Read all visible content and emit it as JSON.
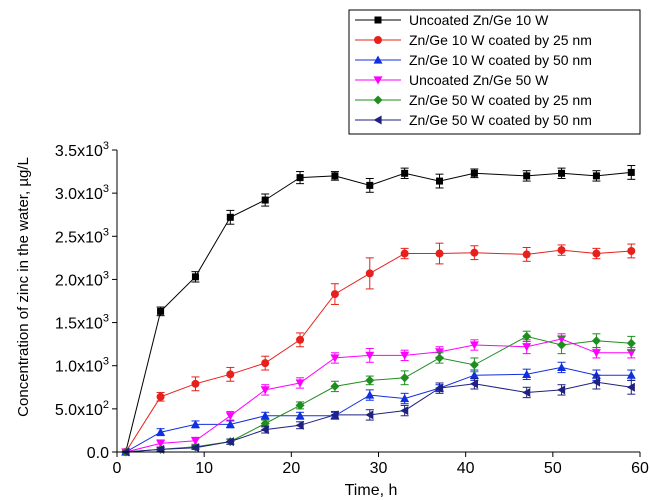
{
  "chart_data": {
    "type": "line",
    "xlabel": "Time, h",
    "ylabel": "Concentration of zinc in the water, µg/L",
    "xlim": [
      0,
      60
    ],
    "ylim": [
      0,
      3500
    ],
    "x_ticks": [
      0,
      10,
      20,
      30,
      40,
      50,
      60
    ],
    "y_ticks": [
      {
        "value": 0,
        "label": "0.0"
      },
      {
        "value": 500,
        "label": "5.0x10",
        "exp": "2"
      },
      {
        "value": 1000,
        "label": "1.0x10",
        "exp": "3"
      },
      {
        "value": 1500,
        "label": "1.5x10",
        "exp": "3"
      },
      {
        "value": 2000,
        "label": "2.0x10",
        "exp": "3"
      },
      {
        "value": 2500,
        "label": "2.5x10",
        "exp": "3"
      },
      {
        "value": 3000,
        "label": "3.0x10",
        "exp": "3"
      },
      {
        "value": 3500,
        "label": "3.5x10",
        "exp": "3"
      }
    ],
    "grid": false,
    "legend_position": "top-right",
    "series": [
      {
        "name": "Uncoated Zn/Ge 10 W",
        "color": "#000000",
        "marker": "square",
        "x": [
          1,
          5,
          9,
          13,
          17,
          21,
          25,
          29,
          33,
          37,
          41,
          47,
          51,
          55,
          59
        ],
        "y": [
          0,
          1630,
          2030,
          2720,
          2920,
          3180,
          3200,
          3090,
          3230,
          3140,
          3230,
          3200,
          3230,
          3200,
          3240
        ],
        "err": [
          0,
          50,
          60,
          80,
          70,
          70,
          50,
          80,
          60,
          80,
          50,
          60,
          60,
          60,
          80
        ]
      },
      {
        "name": "Zn/Ge 10 W coated by 25 nm",
        "color": "#e8201c",
        "marker": "circle",
        "x": [
          1,
          5,
          9,
          13,
          17,
          21,
          25,
          29,
          33,
          37,
          41,
          47,
          51,
          55,
          59
        ],
        "y": [
          0,
          640,
          790,
          900,
          1030,
          1300,
          1830,
          2070,
          2300,
          2300,
          2310,
          2290,
          2340,
          2300,
          2330
        ],
        "err": [
          0,
          50,
          80,
          80,
          80,
          80,
          120,
          180,
          60,
          120,
          80,
          80,
          60,
          60,
          80
        ]
      },
      {
        "name": "Zn/Ge 10 W coated by 50 nm",
        "color": "#1030e0",
        "marker": "triangle-up",
        "x": [
          1,
          5,
          9,
          13,
          17,
          21,
          25,
          29,
          33,
          37,
          41,
          47,
          51,
          55,
          59
        ],
        "y": [
          0,
          230,
          320,
          320,
          420,
          420,
          420,
          660,
          620,
          740,
          890,
          900,
          980,
          890,
          890
        ],
        "err": [
          0,
          40,
          40,
          40,
          40,
          40,
          40,
          60,
          60,
          40,
          60,
          60,
          60,
          60,
          60
        ]
      },
      {
        "name": "Uncoated Zn/Ge 50 W",
        "color": "#ff00ff",
        "marker": "triangle-down",
        "x": [
          1,
          5,
          9,
          13,
          17,
          21,
          25,
          29,
          33,
          37,
          41,
          47,
          51,
          55,
          59
        ],
        "y": [
          0,
          100,
          130,
          420,
          720,
          800,
          1090,
          1120,
          1120,
          1160,
          1240,
          1220,
          1310,
          1150,
          1150
        ],
        "err": [
          0,
          40,
          40,
          50,
          60,
          60,
          60,
          80,
          60,
          60,
          60,
          80,
          60,
          60,
          60
        ]
      },
      {
        "name": "Zn/Ge 50 W coated by 25 nm",
        "color": "#1e8e1e",
        "marker": "diamond",
        "x": [
          1,
          5,
          9,
          13,
          17,
          21,
          25,
          29,
          33,
          37,
          41,
          47,
          51,
          55,
          59
        ],
        "y": [
          0,
          30,
          60,
          120,
          330,
          540,
          760,
          830,
          860,
          1090,
          1010,
          1340,
          1240,
          1290,
          1260
        ],
        "err": [
          0,
          20,
          20,
          30,
          40,
          40,
          60,
          50,
          80,
          60,
          80,
          60,
          100,
          80,
          80
        ]
      },
      {
        "name": "Zn/Ge 50 W coated by 50 nm",
        "color": "#202080",
        "marker": "triangle-left",
        "x": [
          1,
          5,
          9,
          13,
          17,
          21,
          25,
          29,
          33,
          37,
          41,
          47,
          51,
          55,
          59
        ],
        "y": [
          0,
          30,
          50,
          120,
          260,
          310,
          430,
          430,
          480,
          740,
          790,
          690,
          720,
          810,
          750
        ],
        "err": [
          0,
          20,
          20,
          30,
          40,
          40,
          40,
          60,
          60,
          60,
          60,
          60,
          60,
          80,
          80
        ]
      }
    ]
  }
}
